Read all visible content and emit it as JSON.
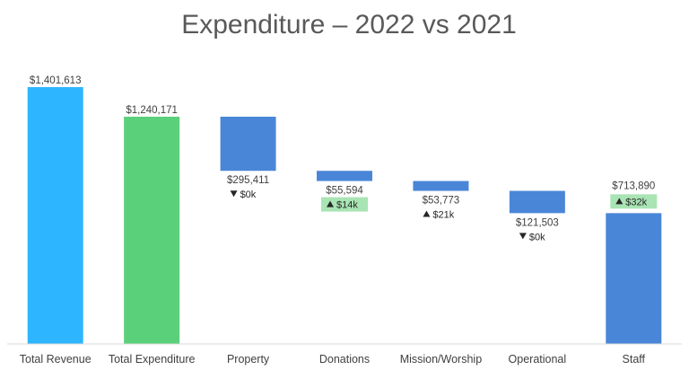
{
  "chart_data": {
    "type": "bar",
    "subtype": "waterfall",
    "title": "Expenditure – 2022 vs 2021",
    "xlabel": "",
    "ylabel": "",
    "ylim": [
      0,
      1401613
    ],
    "grid": false,
    "legend": "none",
    "categories": [
      "Total Revenue",
      "Total Expenditure",
      "Property",
      "Donations",
      "Mission/Worship",
      "Operational",
      "Staff"
    ],
    "bars": [
      {
        "category": "Total Revenue",
        "base": 0,
        "value": 1401613,
        "value_label": "$1,401,613",
        "color": "#2EB5FF",
        "delta": null
      },
      {
        "category": "Total Expenditure",
        "base": 0,
        "value": 1240171,
        "value_label": "$1,240,171",
        "color": "#5BD07A",
        "delta": null
      },
      {
        "category": "Property",
        "base": 944760,
        "value": 295411,
        "value_label": "$295,411",
        "color": "#4A86D8",
        "delta": {
          "direction": "down",
          "text": "$0k",
          "highlight": false
        }
      },
      {
        "category": "Donations",
        "base": 889166,
        "value": 55594,
        "value_label": "$55,594",
        "color": "#4A86D8",
        "delta": {
          "direction": "up",
          "text": "$14k",
          "highlight": true
        }
      },
      {
        "category": "Mission/Worship",
        "base": 835393,
        "value": 53773,
        "value_label": "$53,773",
        "color": "#4A86D8",
        "delta": {
          "direction": "up",
          "text": "$21k",
          "highlight": false
        }
      },
      {
        "category": "Operational",
        "base": 713890,
        "value": 121503,
        "value_label": "$121,503",
        "color": "#4A86D8",
        "delta": {
          "direction": "down",
          "text": "$0k",
          "highlight": false
        }
      },
      {
        "category": "Staff",
        "base": 0,
        "value": 713890,
        "value_label": "$713,890",
        "color": "#4A86D8",
        "delta": {
          "direction": "up",
          "text": "$32k",
          "highlight": true
        }
      }
    ]
  },
  "colors": {
    "axis": "#D9D9D9",
    "label_text": "#404040",
    "title_text": "#595959",
    "delta_highlight": "#A9E4B4"
  }
}
